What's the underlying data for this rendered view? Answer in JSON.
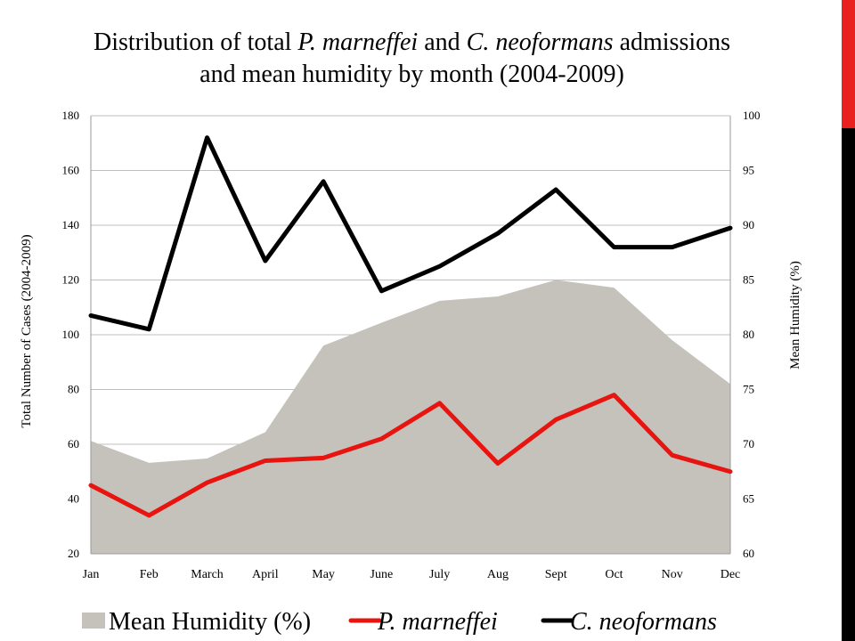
{
  "title": {
    "line1_a": "Distribution of total ",
    "line1_b": "P. marneffei",
    "line1_c": " and ",
    "line1_d": "C. neoformans",
    "line1_e": " admissions",
    "line2": "and mean humidity by month (2004-2009)"
  },
  "chart_data": {
    "type": "line",
    "title": "Distribution of total P. marneffei and C. neoformans admissions and mean humidity by month (2004-2009)",
    "categories": [
      "Jan",
      "Feb",
      "March",
      "April",
      "May",
      "June",
      "July",
      "Aug",
      "Sept",
      "Oct",
      "Nov",
      "Dec"
    ],
    "ylabel": "Total Number of Cases (2004-2009)",
    "y2label": "Mean Humidity (%)",
    "ylim": [
      20,
      180
    ],
    "y2lim": [
      60,
      100
    ],
    "yticks": [
      "20",
      "40",
      "60",
      "80",
      "100",
      "120",
      "140",
      "160",
      "180"
    ],
    "y2ticks": [
      "60",
      "65",
      "70",
      "75",
      "80",
      "85",
      "90",
      "95",
      "100"
    ],
    "grid": true,
    "legend_position": "bottom",
    "series": [
      {
        "name": "Mean Humidity (%)",
        "kind": "area",
        "axis": "right",
        "color": "#c5c2bc",
        "values": [
          70.3,
          68.3,
          68.7,
          71.1,
          79.0,
          81.1,
          83.1,
          83.5,
          85.0,
          84.3,
          79.5,
          75.5
        ]
      },
      {
        "name": "P. marneffei",
        "kind": "line",
        "axis": "left",
        "color": "#e8140f",
        "values": [
          45,
          34,
          46,
          54,
          55,
          62,
          75,
          53,
          69,
          78,
          56,
          50
        ]
      },
      {
        "name": "C. neoformans",
        "kind": "line",
        "axis": "left",
        "color": "#000000",
        "values": [
          107,
          102,
          172,
          127,
          156,
          116,
          125,
          137,
          153,
          132,
          132,
          139
        ]
      }
    ]
  }
}
